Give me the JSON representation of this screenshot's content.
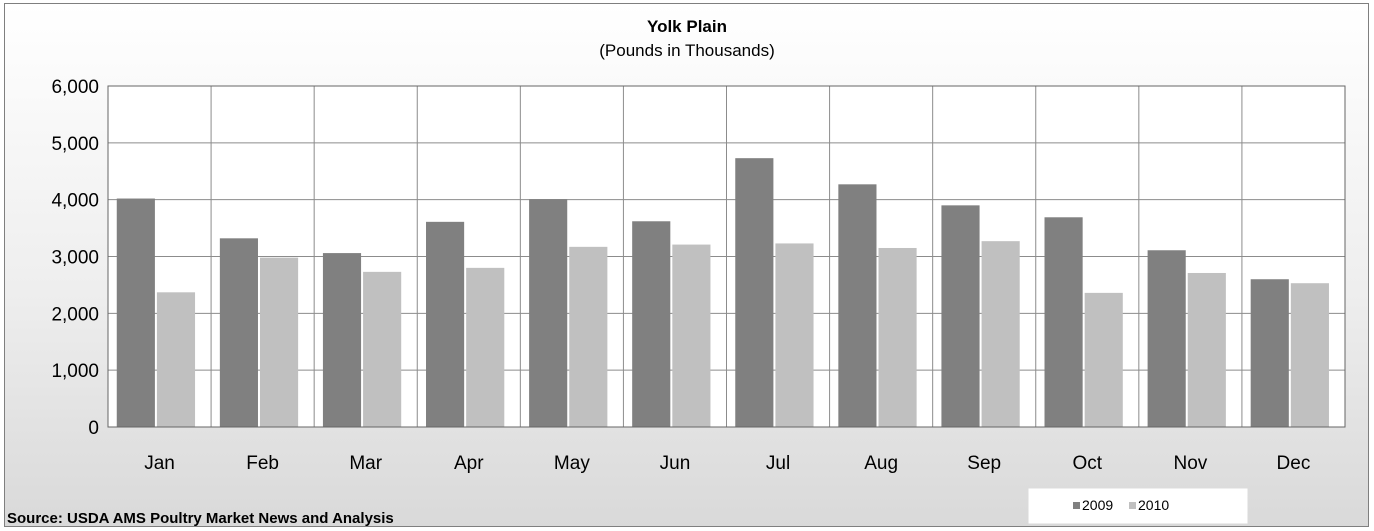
{
  "colors": {
    "series_2009": "#808080",
    "series_2010": "#c0c0c0",
    "plot_background": "#ffffff",
    "grid": "#8c8c8c"
  },
  "source_text": "Source: USDA AMS Poultry Market News and Analysis",
  "chart_data": {
    "type": "bar",
    "title": "Yolk Plain",
    "subtitle": "(Pounds in Thousands)",
    "xlabel": "",
    "ylabel": "",
    "categories": [
      "Jan",
      "Feb",
      "Mar",
      "Apr",
      "May",
      "Jun",
      "Jul",
      "Aug",
      "Sep",
      "Oct",
      "Nov",
      "Dec"
    ],
    "series": [
      {
        "name": "2009",
        "values": [
          4020,
          3320,
          3060,
          3610,
          4010,
          3620,
          4730,
          4270,
          3900,
          3690,
          3110,
          2600
        ]
      },
      {
        "name": "2010",
        "values": [
          2370,
          2980,
          2730,
          2800,
          3170,
          3210,
          3230,
          3150,
          3270,
          2360,
          2710,
          2530
        ]
      }
    ],
    "ylim": [
      0,
      6000
    ],
    "yticks": [
      0,
      1000,
      2000,
      3000,
      4000,
      5000,
      6000
    ],
    "ytick_labels": [
      "0",
      "1,000",
      "2,000",
      "3,000",
      "4,000",
      "5,000",
      "6,000"
    ],
    "grid": true,
    "vertical_grid": true,
    "legend_position": "bottom-right"
  }
}
